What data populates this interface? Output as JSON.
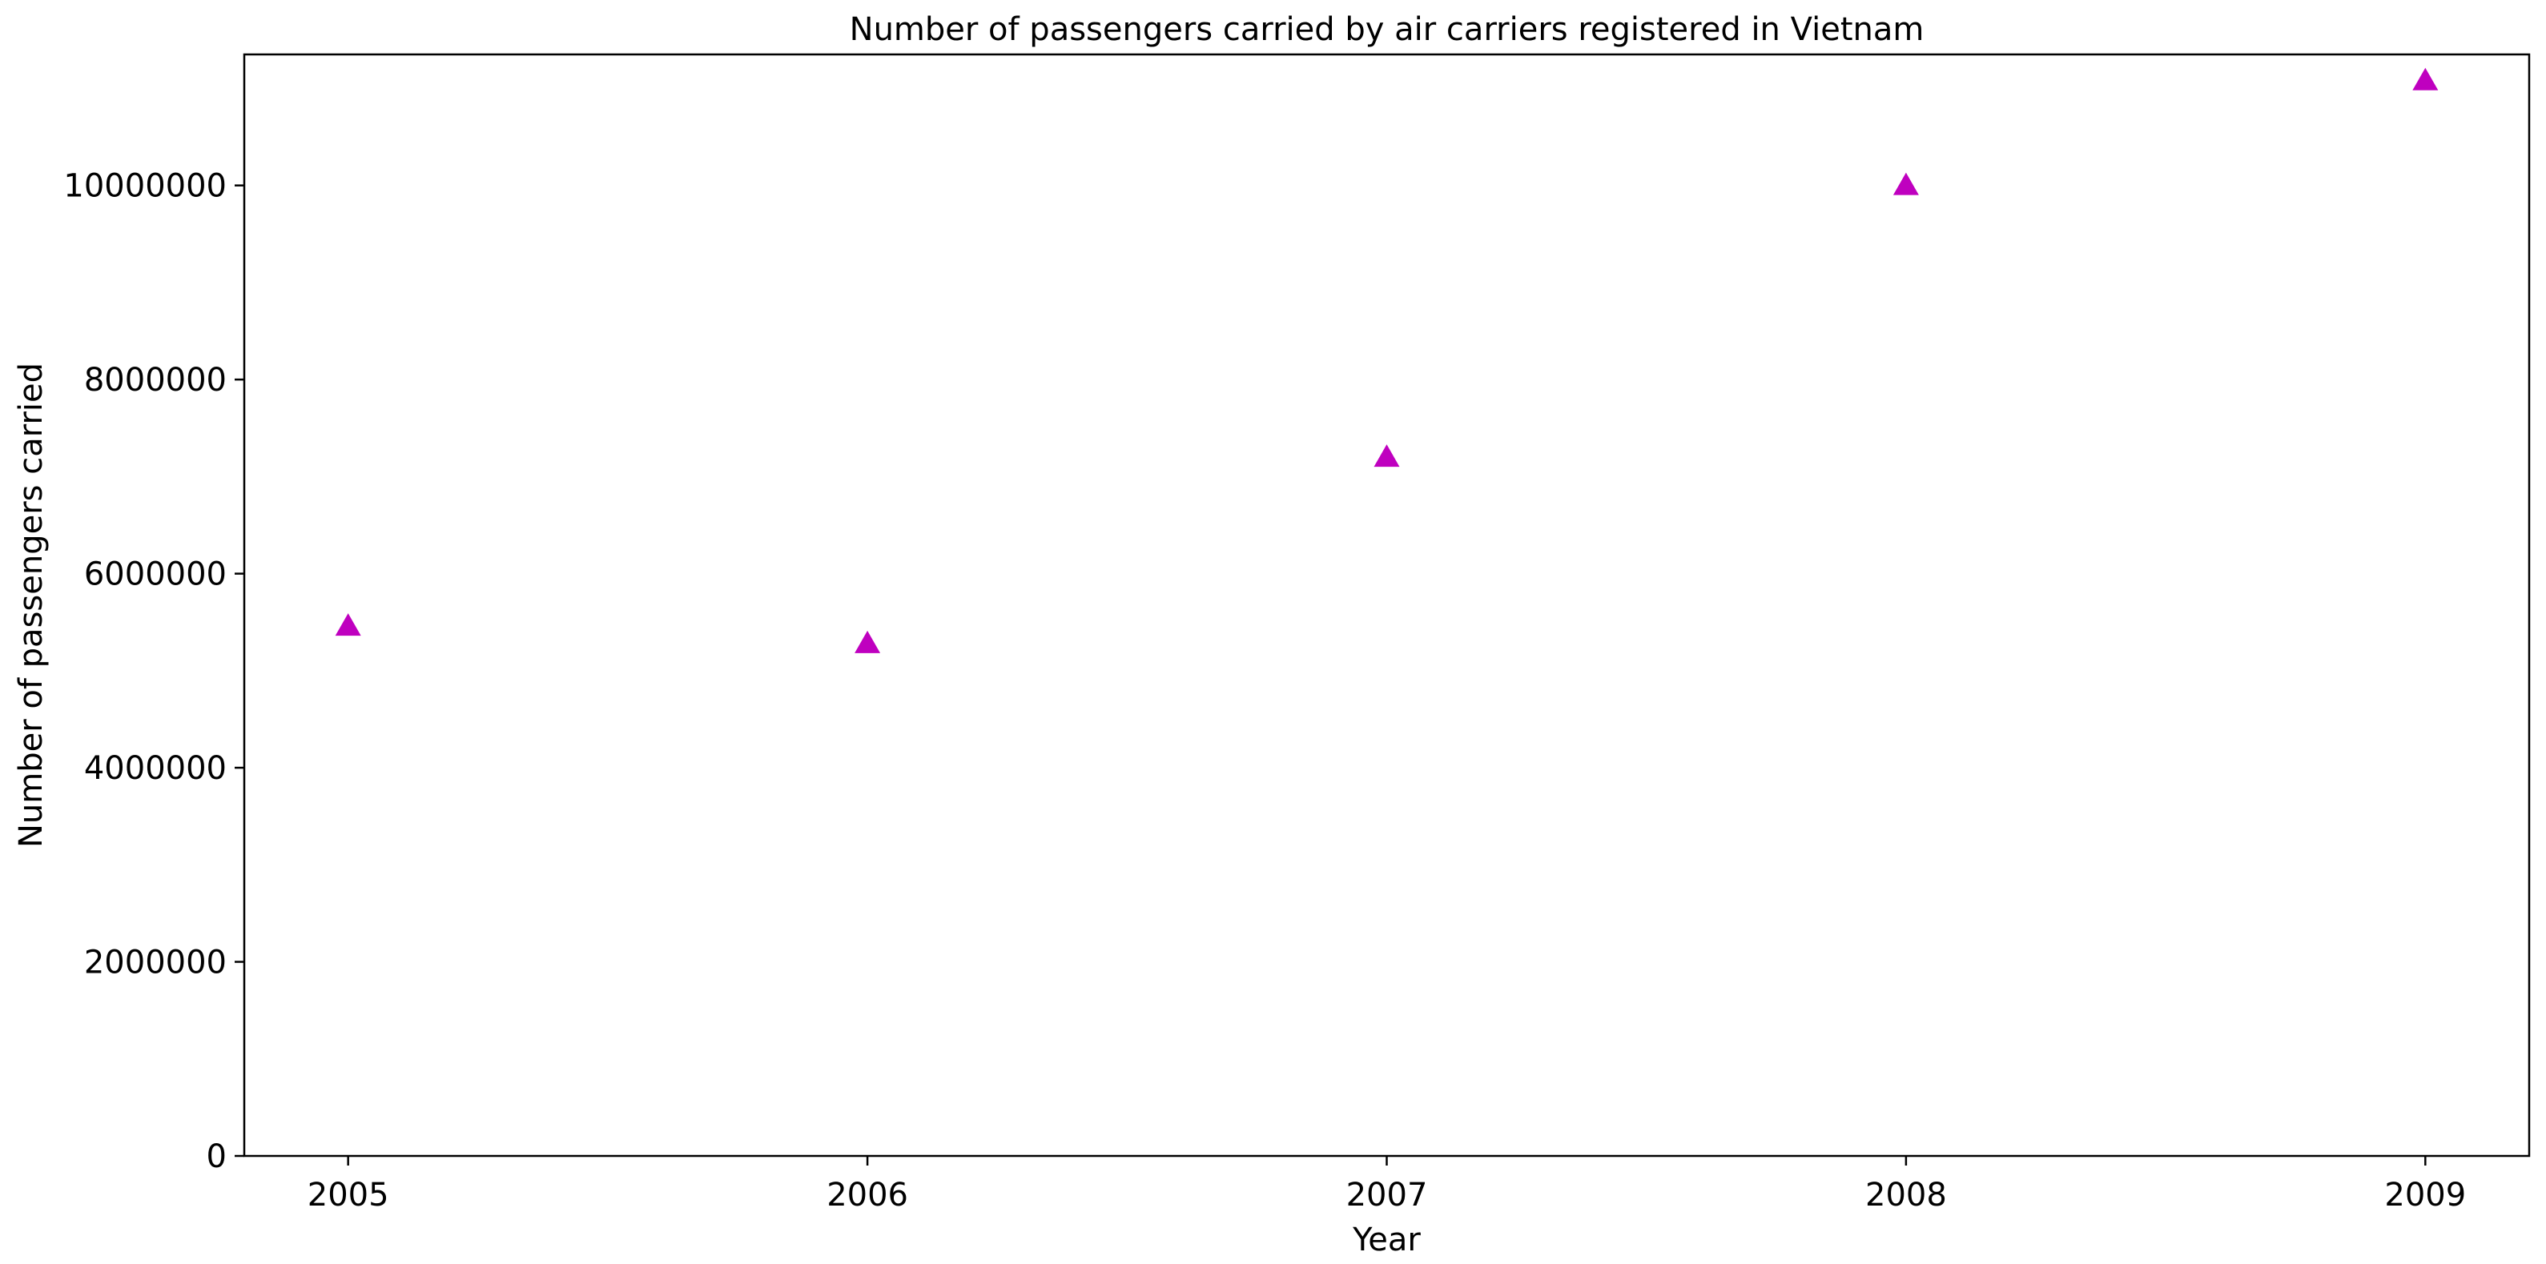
{
  "chart_data": {
    "type": "scatter",
    "title": "Number of passengers carried by air carriers registered in Vietnam",
    "xlabel": "Year",
    "ylabel": "Number of passengers carried",
    "x": [
      2005,
      2006,
      2007,
      2008,
      2009
    ],
    "series": [
      {
        "values": [
          5460000,
          5280000,
          7200000,
          10000000,
          11080000
        ],
        "color": "#bf00bf",
        "marker": "triangle-up"
      }
    ],
    "x_ticks": [
      2005,
      2006,
      2007,
      2008,
      2009
    ],
    "x_tick_labels": [
      "2005",
      "2006",
      "2007",
      "2008",
      "2009"
    ],
    "y_ticks": [
      0,
      2000000,
      4000000,
      6000000,
      8000000,
      10000000
    ],
    "y_tick_labels": [
      "0",
      "2000000",
      "4000000",
      "6000000",
      "8000000",
      "10000000"
    ],
    "xlim": [
      2004.8,
      2009.2
    ],
    "ylim": [
      0,
      11350000
    ],
    "grid": false,
    "legend": "none"
  }
}
